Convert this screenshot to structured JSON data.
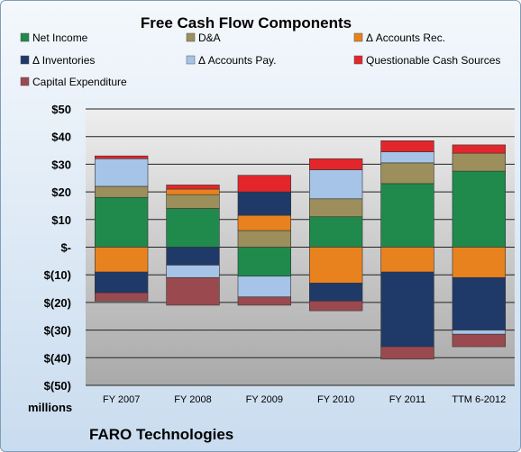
{
  "chart_data": {
    "type": "bar",
    "stacked": true,
    "title": "Free Cash Flow Components",
    "categories": [
      "FY 2007",
      "FY 2008",
      "FY 2009",
      "FY 2010",
      "FY 2011",
      "TTM 6-2012"
    ],
    "ylim": [
      -50,
      50
    ],
    "yticks": [
      {
        "value": 50,
        "label": "$50"
      },
      {
        "value": 40,
        "label": "$40"
      },
      {
        "value": 30,
        "label": "$30"
      },
      {
        "value": 20,
        "label": "$20"
      },
      {
        "value": 10,
        "label": "$10"
      },
      {
        "value": 0,
        "label": "$-"
      },
      {
        "value": -10,
        "label": "$(10)"
      },
      {
        "value": -20,
        "label": "$(20)"
      },
      {
        "value": -30,
        "label": "$(30)"
      },
      {
        "value": -40,
        "label": "$(40)"
      },
      {
        "value": -50,
        "label": "$(50)"
      }
    ],
    "ylabel": "millions",
    "grid": true,
    "legend_position": "top",
    "series": [
      {
        "name": "Net Income",
        "color": "#1f8a4c",
        "values": [
          18,
          14,
          -10.5,
          11,
          23,
          27.5
        ]
      },
      {
        "name": "D&A",
        "color": "#9c8f5c",
        "values": [
          4,
          5,
          6,
          6.5,
          7.5,
          6.5
        ]
      },
      {
        "name": "Δ Accounts Rec.",
        "color": "#e8821e",
        "values": [
          -9,
          2,
          5.5,
          -13,
          -9,
          -11
        ]
      },
      {
        "name": "Δ Inventories",
        "color": "#1f3a68",
        "values": [
          -7.5,
          -6.5,
          8.5,
          -6.5,
          -27,
          -19
        ]
      },
      {
        "name": "Δ Accounts Pay.",
        "color": "#a6c3e8",
        "values": [
          10,
          -4.5,
          -7.5,
          10.5,
          4,
          -1.5
        ]
      },
      {
        "name": "Questionable Cash Sources",
        "color": "#e3262b",
        "values": [
          1,
          1.5,
          6,
          4,
          4,
          3
        ]
      },
      {
        "name": "Capital Expenditure",
        "color": "#9a4a4e",
        "values": [
          -3,
          -10,
          -3,
          -3.5,
          -4.5,
          -4.5
        ]
      }
    ]
  },
  "footer": {
    "company": "FARO Technologies"
  }
}
